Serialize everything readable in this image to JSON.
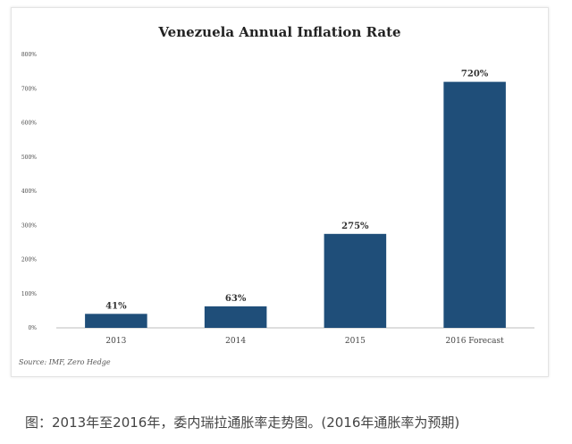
{
  "chart_data": {
    "type": "bar",
    "title": "Venezuela Annual Inflation Rate",
    "categories": [
      "2013",
      "2014",
      "2015",
      "2016 Forecast"
    ],
    "values": [
      41,
      63,
      275,
      720
    ],
    "data_labels": [
      "41%",
      "63%",
      "275%",
      "720%"
    ],
    "ylim": [
      0,
      800
    ],
    "yticks": [
      "0%",
      "100%",
      "200%",
      "300%",
      "400%",
      "500%",
      "600%",
      "700%",
      "800%"
    ],
    "xlabel": "",
    "ylabel": "",
    "grid": false,
    "bar_color": "#1f4e79",
    "source": "Source: IMF, Zero Hedge"
  },
  "caption": "图：2013年至2016年，委内瑞拉通胀率走势图。(2016年通胀率为预期)"
}
